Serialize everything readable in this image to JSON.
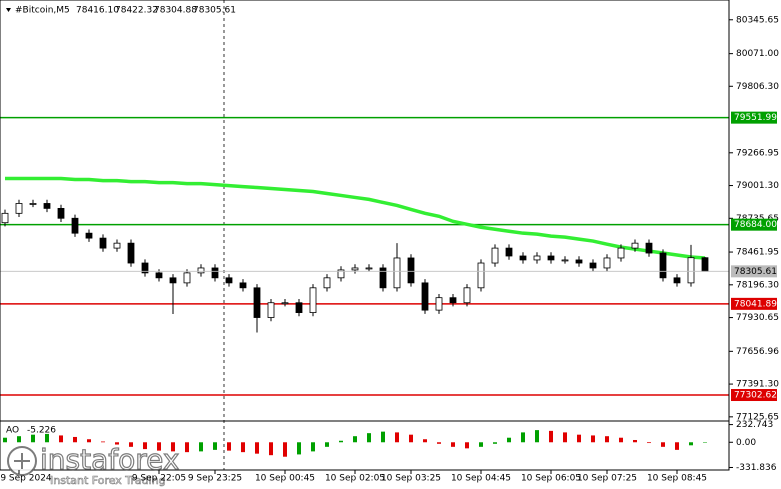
{
  "chart_data": {
    "type": "candlestick",
    "title": "#Bitcoin,M5",
    "title_values": [
      "78416.10",
      "78422.32",
      "78304.88",
      "78305.61"
    ],
    "categories": [
      null,
      "9 Sep 2024",
      null,
      null,
      null,
      null,
      null,
      null,
      null,
      null,
      null,
      "9 Sep 22:05",
      null,
      null,
      null,
      "9 Sep 23:25",
      null,
      null,
      null,
      null,
      "10 Sep 00:45",
      null,
      null,
      null,
      null,
      "10 Sep 02:05",
      null,
      null,
      null,
      "10 Sep 03:25",
      null,
      null,
      null,
      null,
      "10 Sep 04:45",
      null,
      null,
      null,
      null,
      "10 Sep 06:05",
      null,
      null,
      null,
      "10 Sep 07:25",
      null,
      null,
      null,
      null,
      "10 Sep 08:45",
      null,
      null
    ],
    "open": [
      78700,
      78776,
      78856,
      78856,
      78816,
      78736,
      78615,
      78575,
      78494,
      78534,
      78373,
      78293,
      78253,
      78212,
      78293,
      78333,
      78253,
      78212,
      78172,
      77931,
      78051,
      78051,
      77971,
      78172,
      78253,
      78317,
      78333,
      78333,
      78172,
      78414,
      78212,
      77991,
      78092,
      78051,
      78172,
      78373,
      78494,
      78430,
      78398,
      78430,
      78398,
      78398,
      78373,
      78333,
      78414,
      78494,
      78534,
      78454,
      78253,
      78212,
      78416.1
    ],
    "high": [
      78806,
      78886,
      78886,
      78886,
      78846,
      78766,
      78645,
      78605,
      78564,
      78564,
      78403,
      78323,
      78283,
      78323,
      78363,
      78363,
      78283,
      78242,
      78202,
      78081,
      78081,
      78081,
      78202,
      78283,
      78347,
      78363,
      78363,
      78363,
      78534,
      78444,
      78242,
      78122,
      78122,
      78202,
      78403,
      78524,
      78524,
      78460,
      78460,
      78460,
      78428,
      78428,
      78403,
      78444,
      78524,
      78564,
      78564,
      78484,
      78283,
      78520,
      78422.32
    ],
    "low": [
      78670,
      78746,
      78826,
      78786,
      78706,
      78585,
      78545,
      78464,
      78464,
      78343,
      78263,
      78223,
      77960,
      78182,
      78263,
      78223,
      78182,
      78142,
      77810,
      77901,
      78021,
      77941,
      77941,
      78142,
      78223,
      78287,
      78303,
      78142,
      78142,
      78182,
      77961,
      77961,
      78021,
      78021,
      78142,
      78343,
      78400,
      78368,
      78368,
      78368,
      78368,
      78343,
      78303,
      78303,
      78384,
      78464,
      78424,
      78223,
      78182,
      78182,
      78304.88
    ],
    "close": [
      78776,
      78856,
      78856,
      78816,
      78736,
      78615,
      78575,
      78494,
      78534,
      78373,
      78293,
      78253,
      78212,
      78293,
      78333,
      78253,
      78212,
      78172,
      77931,
      78051,
      78051,
      77971,
      78172,
      78253,
      78317,
      78333,
      78333,
      78172,
      78414,
      78212,
      77991,
      78092,
      78051,
      78172,
      78373,
      78494,
      78430,
      78398,
      78430,
      78398,
      78398,
      78373,
      78333,
      78414,
      78494,
      78534,
      78454,
      78253,
      78212,
      78416.1,
      78305.61
    ],
    "up_color": "#ffffff",
    "down_color": "#000000",
    "ylim": [
      77100,
      80506
    ],
    "yticks": [
      80345.65,
      {
        "value": 80071,
        "label": "80071.00"
      },
      {
        "value": 79806.3,
        "label": "79806.30"
      },
      79266.95,
      {
        "value": 79001.3,
        "label": "79001.30"
      },
      78735.65,
      78461.95,
      {
        "value": 78196.3,
        "label": "78196.30"
      },
      77930.65,
      77656.96,
      {
        "value": 77391.3,
        "label": "77391.30"
      },
      77125.65
    ],
    "levels": [
      {
        "value": 79551.99,
        "color": "#00a000"
      },
      {
        "value": 78684,
        "label": "78684.00",
        "color": "#00a000"
      },
      {
        "value": 78041.89,
        "color": "#dd0000"
      },
      {
        "value": 77302.62,
        "color": "#dd0000"
      }
    ],
    "ma": {
      "color": "#33ee33",
      "values": [
        79058,
        79058,
        79058,
        79058,
        79058,
        79050,
        79050,
        79041,
        79041,
        79033,
        79033,
        79025,
        79025,
        79017,
        79017,
        79009,
        79001,
        78993,
        78985,
        78977,
        78969,
        78961,
        78953,
        78937,
        78921,
        78905,
        78889,
        78864,
        78840,
        78808,
        78776,
        78752,
        78711,
        78687,
        78663,
        78647,
        78631,
        78615,
        78607,
        78591,
        78583,
        78567,
        78551,
        78526,
        78502,
        78486,
        78470,
        78454,
        78438,
        78422,
        78414
      ]
    },
    "ao": {
      "name": "AO",
      "up_color": "#00a000",
      "down_color": "#e00000",
      "values": [
        60,
        80,
        100,
        110,
        90,
        70,
        40,
        10,
        -30,
        -60,
        -90,
        -110,
        -120,
        -130,
        -120,
        -100,
        -110,
        -130,
        -150,
        -170,
        -190,
        -160,
        -120,
        -60,
        20,
        80,
        120,
        140,
        130,
        100,
        40,
        -20,
        -60,
        -80,
        -60,
        -20,
        60,
        130,
        160,
        150,
        130,
        100,
        90,
        80,
        60,
        30,
        -10,
        -60,
        -100,
        -40,
        -5.226
      ],
      "ylim": [
        -365,
        280
      ],
      "yticks": [
        232.743,
        {
          "value": 0,
          "label": "0.00"
        },
        -331.836
      ]
    }
  },
  "watermark": {
    "brand": "instaforex",
    "tagline": "Instant Forex Trading"
  }
}
